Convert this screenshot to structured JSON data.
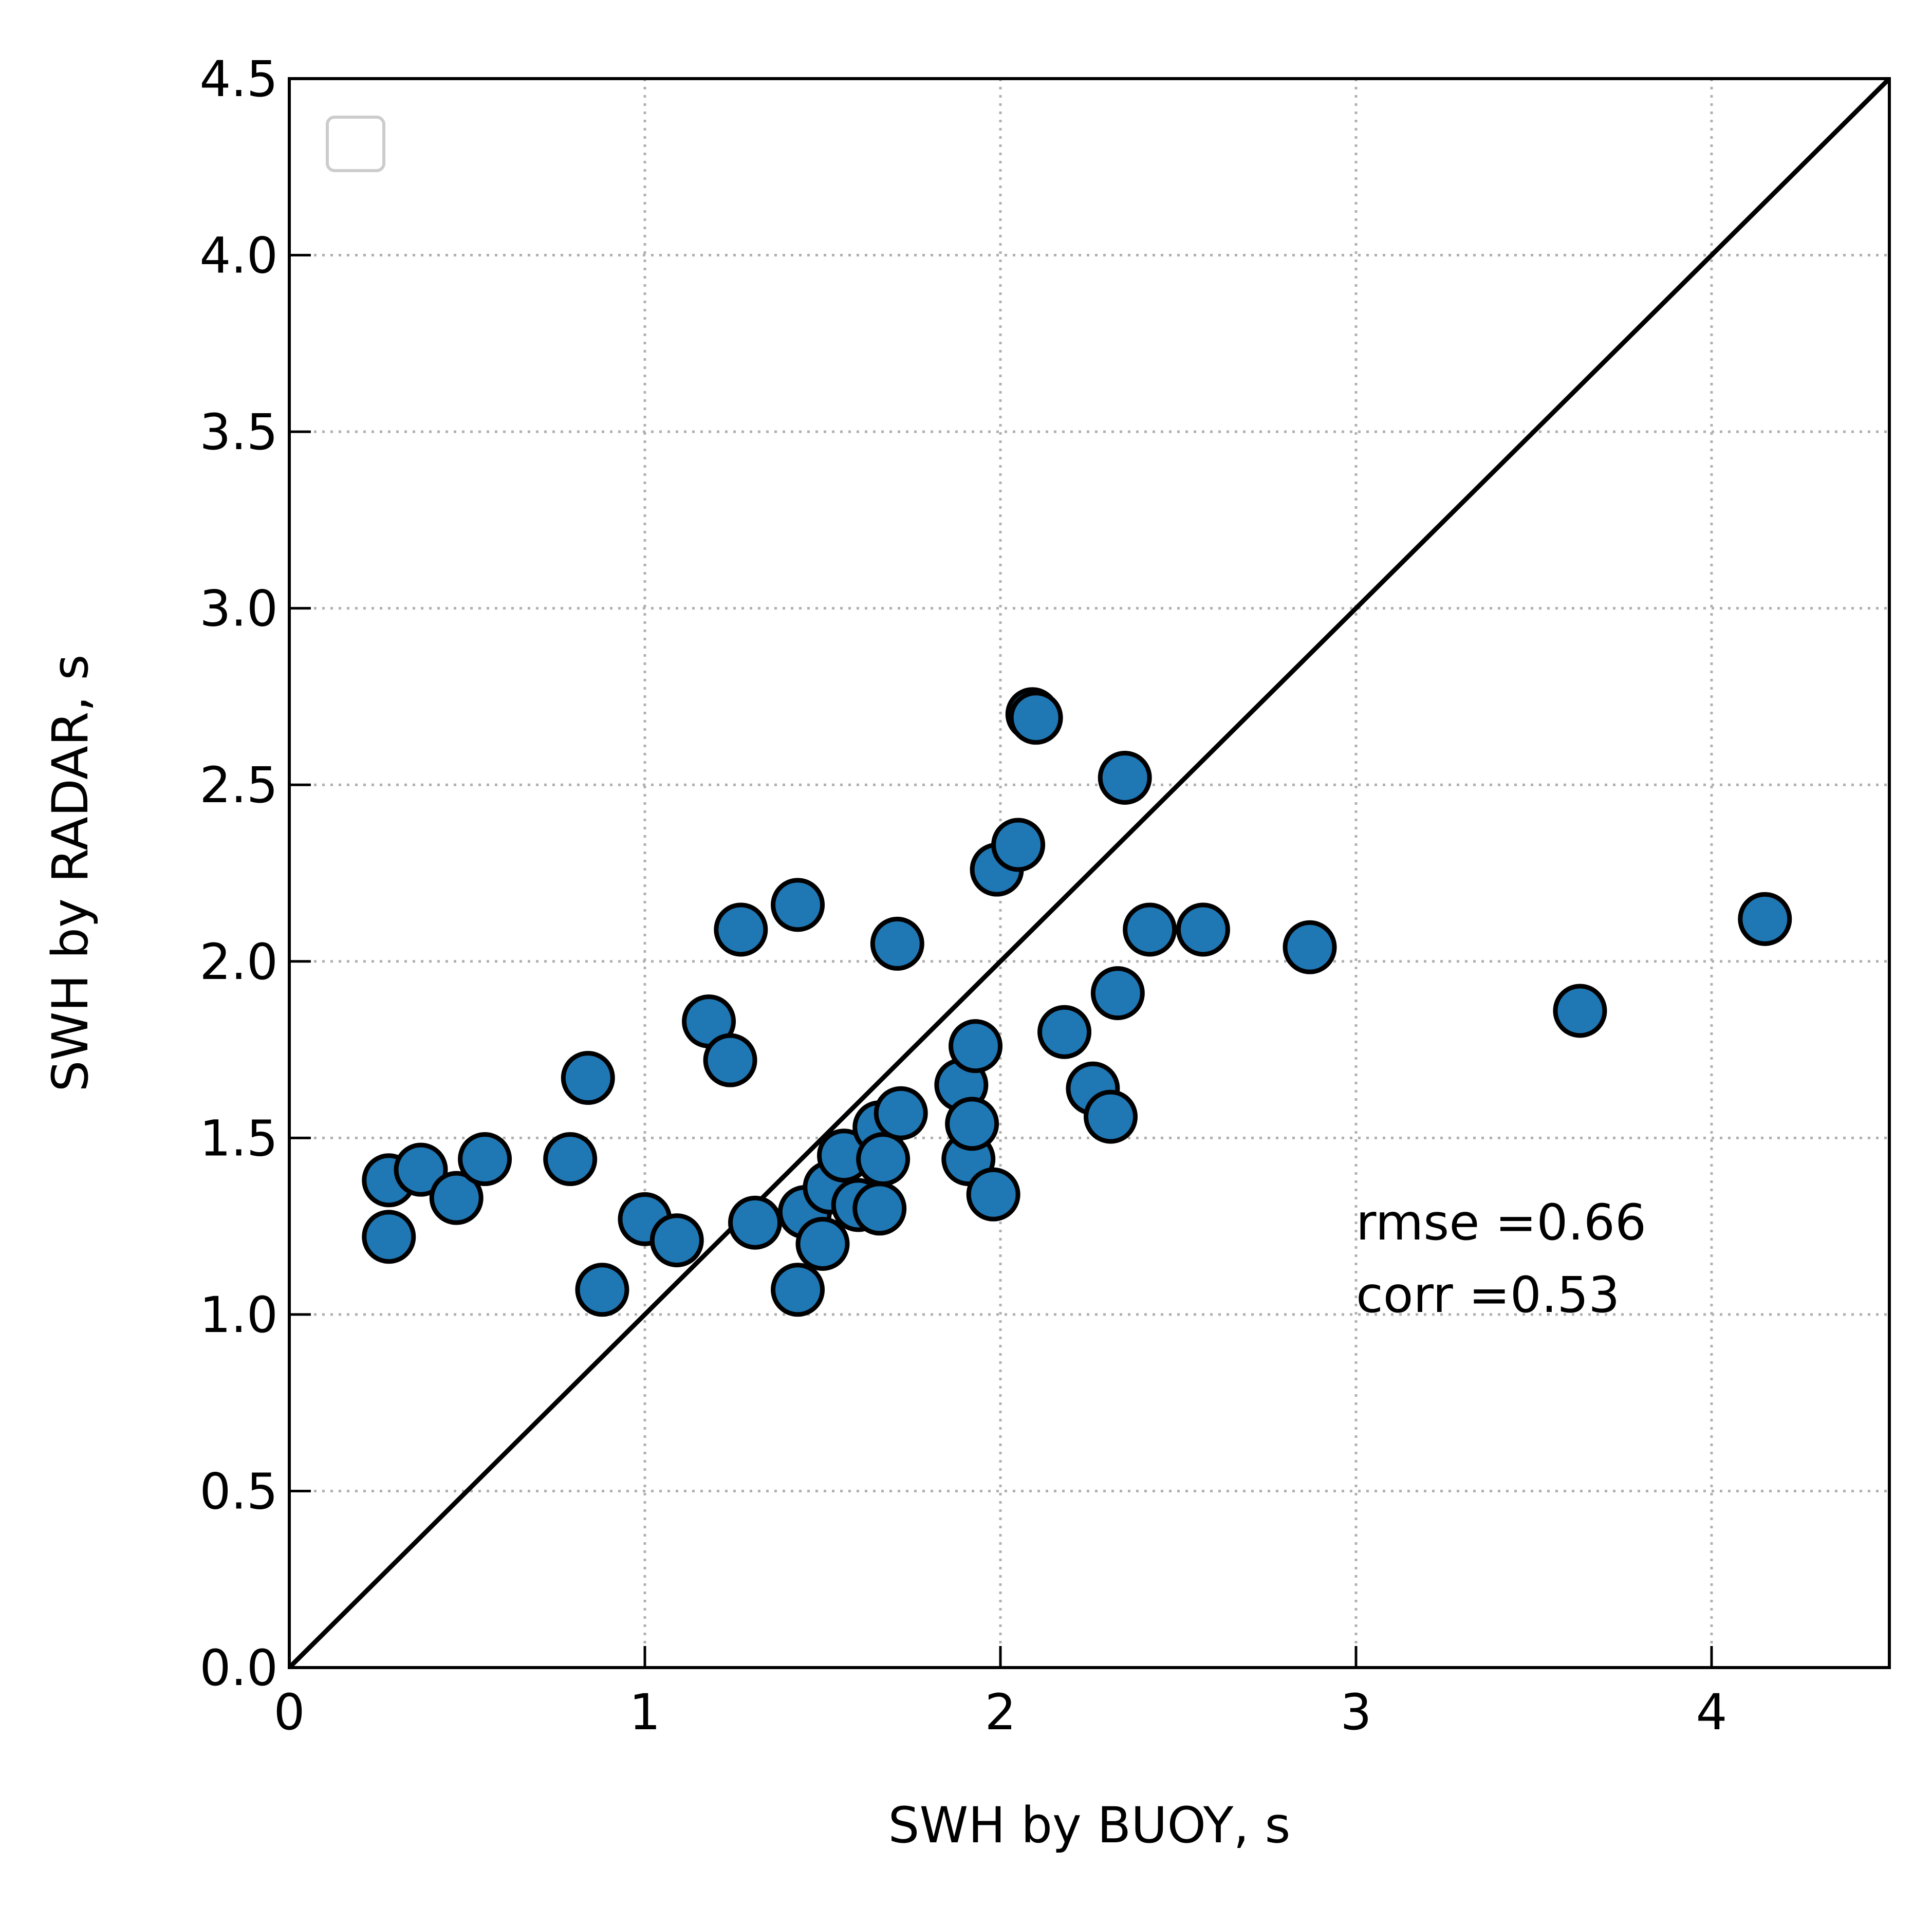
{
  "chart_data": {
    "type": "scatter",
    "title": "",
    "xlabel": "SWH by BUOY, s",
    "ylabel": "SWH by RADAR, s",
    "xlim": [
      0,
      4.5
    ],
    "ylim": [
      0,
      4.5
    ],
    "xticks": [
      "0",
      "1",
      "2",
      "3",
      "4"
    ],
    "yticks": [
      "0.0",
      "0.5",
      "1.0",
      "1.5",
      "2.0",
      "2.5",
      "3.0",
      "3.5",
      "4.0",
      "4.5"
    ],
    "grid": true,
    "legend": "upper-left (empty)",
    "reference_line": "y = x",
    "marker_color": "#1f77b4",
    "marker_edge_color": "#000000",
    "annotations": [
      "rmse =0.66",
      "corr =0.53"
    ],
    "points": [
      {
        "x": 0.28,
        "y": 1.22
      },
      {
        "x": 0.28,
        "y": 1.38
      },
      {
        "x": 0.37,
        "y": 1.41
      },
      {
        "x": 0.47,
        "y": 1.33
      },
      {
        "x": 0.55,
        "y": 1.44
      },
      {
        "x": 0.79,
        "y": 1.44
      },
      {
        "x": 0.84,
        "y": 1.67
      },
      {
        "x": 0.88,
        "y": 1.07
      },
      {
        "x": 1.0,
        "y": 1.27
      },
      {
        "x": 1.09,
        "y": 1.21
      },
      {
        "x": 1.18,
        "y": 1.83
      },
      {
        "x": 1.24,
        "y": 1.72
      },
      {
        "x": 1.27,
        "y": 2.09
      },
      {
        "x": 1.31,
        "y": 1.26
      },
      {
        "x": 1.43,
        "y": 2.16
      },
      {
        "x": 1.43,
        "y": 1.07
      },
      {
        "x": 1.45,
        "y": 1.29
      },
      {
        "x": 1.5,
        "y": 1.2
      },
      {
        "x": 1.52,
        "y": 1.36
      },
      {
        "x": 1.56,
        "y": 1.45
      },
      {
        "x": 1.6,
        "y": 1.31
      },
      {
        "x": 1.66,
        "y": 1.53
      },
      {
        "x": 1.66,
        "y": 1.3
      },
      {
        "x": 1.67,
        "y": 1.44
      },
      {
        "x": 1.71,
        "y": 2.05
      },
      {
        "x": 1.72,
        "y": 1.57
      },
      {
        "x": 1.89,
        "y": 1.65
      },
      {
        "x": 1.91,
        "y": 1.44
      },
      {
        "x": 1.92,
        "y": 1.54
      },
      {
        "x": 1.93,
        "y": 1.76
      },
      {
        "x": 1.98,
        "y": 1.34
      },
      {
        "x": 1.99,
        "y": 2.26
      },
      {
        "x": 2.05,
        "y": 2.33
      },
      {
        "x": 2.09,
        "y": 2.7
      },
      {
        "x": 2.1,
        "y": 2.69
      },
      {
        "x": 2.18,
        "y": 1.8
      },
      {
        "x": 2.26,
        "y": 1.64
      },
      {
        "x": 2.31,
        "y": 1.56
      },
      {
        "x": 2.33,
        "y": 1.91
      },
      {
        "x": 2.35,
        "y": 2.52
      },
      {
        "x": 2.42,
        "y": 2.09
      },
      {
        "x": 2.57,
        "y": 2.09
      },
      {
        "x": 2.87,
        "y": 2.04
      },
      {
        "x": 3.63,
        "y": 1.86
      },
      {
        "x": 4.15,
        "y": 2.12
      }
    ]
  }
}
